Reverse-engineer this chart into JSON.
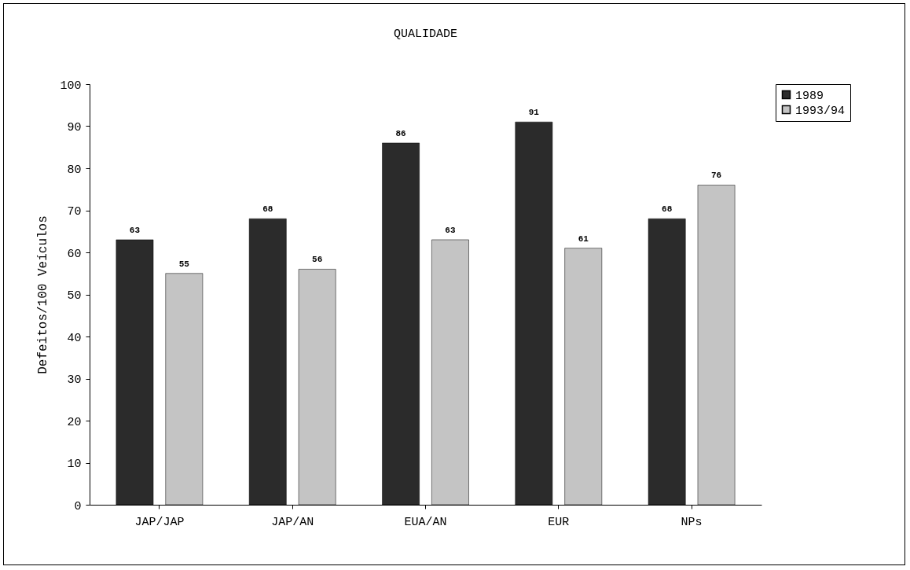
{
  "chart_data": {
    "type": "bar",
    "title": "QUALIDADE",
    "ylabel": "Defeitos/100 Veículos",
    "categories": [
      "JAP/JAP",
      "JAP/AN",
      "EUA/AN",
      "EUR",
      "NPs"
    ],
    "series": [
      {
        "name": "1989",
        "color": "#2b2b2b",
        "values": [
          63,
          68,
          86,
          91,
          68
        ]
      },
      {
        "name": "1993/94",
        "color": "#c4c4c4",
        "values": [
          55,
          56,
          63,
          61,
          76
        ]
      }
    ],
    "ylim": [
      0,
      100
    ],
    "yticks": [
      0,
      10,
      20,
      30,
      40,
      50,
      60,
      70,
      80,
      90,
      100
    ],
    "data_labels": true,
    "legend": "right"
  }
}
